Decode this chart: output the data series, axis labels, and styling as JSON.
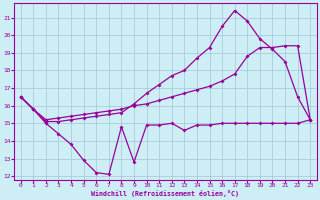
{
  "xlabel": "Windchill (Refroidissement éolien,°C)",
  "bg_color": "#cdeef5",
  "line_color": "#990099",
  "grid_color": "#99bbcc",
  "xlim": [
    -0.5,
    23.5
  ],
  "ylim": [
    11.8,
    21.8
  ],
  "yticks": [
    12,
    13,
    14,
    15,
    16,
    17,
    18,
    19,
    20,
    21
  ],
  "xticks": [
    0,
    1,
    2,
    3,
    4,
    5,
    6,
    7,
    8,
    9,
    10,
    11,
    12,
    13,
    14,
    15,
    16,
    17,
    18,
    19,
    20,
    21,
    22,
    23
  ],
  "series1_x": [
    0,
    1,
    2,
    3,
    4,
    5,
    6,
    7,
    8,
    9,
    10,
    11,
    12,
    13,
    14,
    15,
    16,
    17,
    18,
    19,
    20,
    21,
    22,
    23
  ],
  "series1_y": [
    16.5,
    15.8,
    15.0,
    14.4,
    13.8,
    12.9,
    12.2,
    12.1,
    14.8,
    12.8,
    14.9,
    14.9,
    15.0,
    14.6,
    14.9,
    14.9,
    15.0,
    15.0,
    15.0,
    15.0,
    15.0,
    15.0,
    15.0,
    15.2
  ],
  "series2_x": [
    0,
    1,
    2,
    3,
    4,
    5,
    6,
    7,
    8,
    9,
    10,
    11,
    12,
    13,
    14,
    15,
    16,
    17,
    18,
    19,
    20,
    21,
    22,
    23
  ],
  "series2_y": [
    16.5,
    15.8,
    15.2,
    15.3,
    15.4,
    15.5,
    15.6,
    15.7,
    15.8,
    16.0,
    16.1,
    16.3,
    16.5,
    16.7,
    16.9,
    17.1,
    17.4,
    17.8,
    18.8,
    19.3,
    19.3,
    19.4,
    19.4,
    15.2
  ],
  "series3_x": [
    0,
    1,
    2,
    3,
    4,
    5,
    6,
    7,
    8,
    9,
    10,
    11,
    12,
    13,
    14,
    15,
    16,
    17,
    18,
    19,
    20,
    21,
    22,
    23
  ],
  "series3_y": [
    16.5,
    15.8,
    15.1,
    15.1,
    15.2,
    15.3,
    15.4,
    15.5,
    15.6,
    16.1,
    16.7,
    17.2,
    17.7,
    18.0,
    18.7,
    19.3,
    20.5,
    21.4,
    20.8,
    19.8,
    19.2,
    18.5,
    16.5,
    15.2
  ]
}
